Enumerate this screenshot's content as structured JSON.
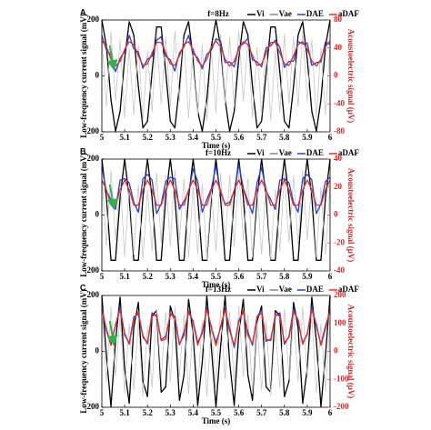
{
  "chart_data": [
    {
      "type": "line",
      "panel_label": "A",
      "title": "f=8Hz",
      "xlabel": "Time (s)",
      "ylabel": "Low-frequency current signal (mV)",
      "y2label": "Acoustoelectric signal (μV)",
      "xlim": [
        5,
        6
      ],
      "xticks": [
        5,
        5.1,
        5.2,
        5.3,
        5.4,
        5.5,
        5.6,
        5.7,
        5.8,
        5.9,
        6
      ],
      "ylim": [
        -200,
        200
      ],
      "yticks": [
        -200,
        0,
        200
      ],
      "y2lim": [
        -80,
        80
      ],
      "y2ticks": [
        -80,
        -40,
        0,
        40,
        80
      ],
      "x": [
        5,
        5.02,
        5.04,
        5.06,
        5.08,
        5.1,
        5.12,
        5.14,
        5.16,
        5.18,
        5.2,
        5.22,
        5.24,
        5.26,
        5.28,
        5.3,
        5.32,
        5.34,
        5.36,
        5.38,
        5.4,
        5.42,
        5.44,
        5.46,
        5.48,
        5.5,
        5.52,
        5.54,
        5.56,
        5.58,
        5.6,
        5.62,
        5.64,
        5.66,
        5.68,
        5.7,
        5.72,
        5.74,
        5.76,
        5.78,
        5.8,
        5.82,
        5.84,
        5.86,
        5.88,
        5.9,
        5.92,
        5.94,
        5.96,
        5.98,
        6
      ],
      "series": [
        {
          "name": "Vi",
          "color": "#000000",
          "values": [
            200,
            107,
            -85,
            -198,
            -127,
            62,
            194,
            146,
            -37,
            -186,
            -162,
            13,
            175,
            175,
            13,
            -162,
            -186,
            -37,
            146,
            194,
            62,
            -127,
            -198,
            -85,
            107,
            200,
            107,
            -85,
            -198,
            -127,
            62,
            194,
            146,
            -37,
            -186,
            -162,
            13,
            175,
            175,
            13,
            -162,
            -186,
            -37,
            146,
            194,
            62,
            -127,
            -198,
            -85,
            107,
            200
          ]
        },
        {
          "name": "Vae",
          "color": "#c8c8c8",
          "values": [
            140,
            -110,
            160,
            -90,
            130,
            -150,
            100,
            -140,
            110,
            -160,
            90,
            -130,
            150,
            -100,
            140,
            -110,
            160,
            -90,
            130,
            -150,
            100,
            -140,
            110,
            -160,
            90,
            -130,
            150,
            -100,
            140,
            -110,
            160,
            -90,
            130,
            -150,
            100,
            -140,
            110,
            -160,
            90,
            -130,
            150,
            -100,
            140,
            -110,
            160,
            -90,
            130,
            -150,
            100,
            -140,
            110
          ]
        },
        {
          "name": "DAE",
          "color": "#2b3fd6",
          "axis": "y2",
          "values": [
            58,
            37,
            30,
            6,
            25,
            35,
            58,
            39,
            34,
            11,
            24,
            28,
            51,
            56,
            28,
            23,
            7,
            33,
            42,
            58,
            32,
            26,
            10,
            31,
            37,
            53,
            50,
            19,
            20,
            13,
            42,
            46,
            54,
            23,
            20,
            13,
            40,
            43,
            51,
            41,
            12,
            21,
            21,
            49,
            46,
            47,
            15,
            19,
            20,
            49,
            45
          ]
        },
        {
          "name": "aDAF",
          "color": "#e0302a",
          "axis": "y2",
          "values": [
            50,
            42,
            24,
            14,
            21,
            38,
            49,
            45,
            29,
            15,
            17,
            33,
            48,
            48,
            33,
            17,
            15,
            29,
            45,
            49,
            38,
            21,
            14,
            24,
            42,
            50,
            42,
            24,
            14,
            21,
            38,
            49,
            45,
            29,
            15,
            17,
            33,
            48,
            48,
            33,
            17,
            15,
            29,
            45,
            49,
            38,
            21,
            14,
            24,
            42,
            50
          ]
        }
      ]
    },
    {
      "type": "line",
      "panel_label": "B",
      "title": "f=10Hz",
      "xlabel": "Time (s)",
      "ylabel": "Low-frequency current signal (mV)",
      "y2label": "Acoustoelectric signal (μV)",
      "xlim": [
        5,
        6
      ],
      "xticks": [
        5,
        5.1,
        5.2,
        5.3,
        5.4,
        5.5,
        5.6,
        5.7,
        5.8,
        5.9,
        6
      ],
      "ylim": [
        -200,
        200
      ],
      "yticks": [
        -200,
        0,
        200
      ],
      "y2lim": [
        -40,
        40
      ],
      "y2ticks": [
        -40,
        -20,
        0,
        20,
        40
      ],
      "x": [
        5,
        5.02,
        5.04,
        5.06,
        5.08,
        5.1,
        5.12,
        5.14,
        5.16,
        5.18,
        5.2,
        5.22,
        5.24,
        5.26,
        5.28,
        5.3,
        5.32,
        5.34,
        5.36,
        5.38,
        5.4,
        5.42,
        5.44,
        5.46,
        5.48,
        5.5,
        5.52,
        5.54,
        5.56,
        5.58,
        5.6,
        5.62,
        5.64,
        5.66,
        5.68,
        5.7,
        5.72,
        5.74,
        5.76,
        5.78,
        5.8,
        5.82,
        5.84,
        5.86,
        5.88,
        5.9,
        5.92,
        5.94,
        5.96,
        5.98,
        6
      ],
      "series": [
        {
          "name": "Vi",
          "color": "#000000",
          "values": [
            200,
            62,
            -162,
            -162,
            62,
            200,
            62,
            -162,
            -162,
            62,
            200,
            62,
            -162,
            -162,
            62,
            200,
            62,
            -162,
            -162,
            62,
            200,
            62,
            -162,
            -162,
            62,
            200,
            62,
            -162,
            -162,
            62,
            200,
            62,
            -162,
            -162,
            62,
            200,
            62,
            -162,
            -162,
            62,
            200,
            62,
            -162,
            -162,
            62,
            200,
            62,
            -162,
            -162,
            62,
            200
          ]
        },
        {
          "name": "Vae",
          "color": "#c8c8c8",
          "values": [
            140,
            -110,
            160,
            -90,
            130,
            -150,
            100,
            -140,
            110,
            -160,
            90,
            -130,
            150,
            -100,
            140,
            -110,
            160,
            -90,
            130,
            -150,
            100,
            -140,
            110,
            -160,
            90,
            -130,
            150,
            -100,
            140,
            -110,
            160,
            -90,
            130,
            -150,
            100,
            -140,
            110,
            -160,
            90,
            -130,
            150,
            -100,
            140,
            -110,
            160,
            -90,
            130,
            -150,
            100,
            -140,
            110
          ]
        },
        {
          "name": "DAE",
          "color": "#2b3fd6",
          "axis": "y2",
          "values": [
            34,
            17,
            11,
            4,
            25,
            26,
            23,
            9,
            2,
            26,
            29,
            25,
            1,
            8,
            24,
            27,
            26,
            4,
            10,
            16,
            33,
            24,
            2,
            11,
            19,
            35,
            16,
            8,
            9,
            17,
            36,
            19,
            10,
            1,
            23,
            34,
            17,
            11,
            4,
            25,
            26,
            23,
            9,
            2,
            26,
            29,
            25,
            1,
            8,
            24,
            27
          ]
        },
        {
          "name": "aDAF",
          "color": "#e0302a",
          "axis": "y2",
          "values": [
            25,
            18,
            7,
            7,
            18,
            25,
            18,
            7,
            7,
            18,
            25,
            18,
            7,
            7,
            18,
            25,
            18,
            7,
            7,
            18,
            25,
            18,
            7,
            7,
            18,
            25,
            18,
            7,
            7,
            18,
            25,
            18,
            7,
            7,
            18,
            25,
            18,
            7,
            7,
            18,
            25,
            18,
            7,
            7,
            18,
            25,
            18,
            7,
            7,
            18,
            25
          ]
        }
      ]
    },
    {
      "type": "line",
      "panel_label": "C",
      "title": "f=13Hz",
      "xlabel": "Time (s)",
      "ylabel": "Low-frequency current signal (mV)",
      "y2label": "Acoustoelectric signal (μV)",
      "xlim": [
        5,
        6
      ],
      "xticks": [
        5,
        5.1,
        5.2,
        5.3,
        5.4,
        5.5,
        5.6,
        5.7,
        5.8,
        5.9,
        6
      ],
      "ylim": [
        -200,
        200
      ],
      "yticks": [
        -200,
        0,
        200
      ],
      "y2lim": [
        -200,
        200
      ],
      "y2ticks": [
        -200,
        -100,
        0,
        100,
        200
      ],
      "x": [
        5,
        5.02,
        5.04,
        5.06,
        5.08,
        5.1,
        5.12,
        5.14,
        5.16,
        5.18,
        5.2,
        5.22,
        5.24,
        5.26,
        5.28,
        5.3,
        5.32,
        5.34,
        5.36,
        5.38,
        5.4,
        5.42,
        5.44,
        5.46,
        5.48,
        5.5,
        5.52,
        5.54,
        5.56,
        5.58,
        5.6,
        5.62,
        5.64,
        5.66,
        5.68,
        5.7,
        5.72,
        5.74,
        5.76,
        5.78,
        5.8,
        5.82,
        5.84,
        5.86,
        5.88,
        5.9,
        5.92,
        5.94,
        5.96,
        5.98,
        6
      ],
      "series": [
        {
          "name": "Vi",
          "color": "#000000",
          "values": [
            200,
            -13,
            -198,
            37,
            194,
            -62,
            -186,
            85,
            175,
            -107,
            -162,
            127,
            146,
            -146,
            -127,
            162,
            107,
            -175,
            -85,
            186,
            62,
            -194,
            -37,
            198,
            13,
            -200,
            13,
            198,
            -37,
            -194,
            62,
            186,
            -85,
            -175,
            107,
            162,
            -127,
            -146,
            146,
            127,
            -162,
            -107,
            175,
            85,
            -186,
            -62,
            194,
            37,
            -198,
            -13,
            200
          ]
        },
        {
          "name": "Vae",
          "color": "#c8c8c8",
          "values": [
            140,
            -110,
            160,
            -90,
            130,
            -150,
            100,
            -140,
            110,
            -160,
            90,
            -130,
            150,
            -100,
            140,
            -110,
            160,
            -90,
            130,
            -150,
            100,
            -140,
            110,
            -160,
            90,
            -130,
            150,
            -100,
            140,
            -110,
            160,
            -90,
            130,
            -150,
            100,
            -140,
            110,
            -160,
            90,
            -130,
            150,
            -100,
            140,
            -110,
            160,
            -90,
            130,
            -150,
            100,
            -140,
            110
          ]
        },
        {
          "name": "DAE",
          "color": "#2b3fd6",
          "axis": "y2",
          "values": [
            160,
            73,
            27,
            92,
            160,
            58,
            29,
            123,
            134,
            56,
            27,
            138,
            125,
            42,
            54,
            130,
            126,
            23,
            69,
            138,
            109,
            32,
            65,
            155,
            84,
            32,
            82,
            153,
            83,
            14,
            111,
            140,
            69,
            21,
            124,
            148,
            36,
            44,
            127,
            138,
            25,
            54,
            152,
            105,
            31,
            60,
            160,
            90,
            25,
            91,
            145
          ]
        },
        {
          "name": "aDAF",
          "color": "#e0302a",
          "axis": "y2",
          "values": [
            150,
            81,
            21,
            97,
            148,
            65,
            25,
            113,
            142,
            50,
            32,
            126,
            132,
            38,
            44,
            138,
            120,
            28,
            57,
            145,
            105,
            22,
            73,
            149,
            89,
            20,
            89,
            149,
            73,
            22,
            105,
            145,
            57,
            28,
            120,
            138,
            44,
            38,
            132,
            126,
            32,
            50,
            142,
            113,
            25,
            65,
            148,
            97,
            21,
            81,
            150
          ]
        }
      ]
    }
  ]
}
